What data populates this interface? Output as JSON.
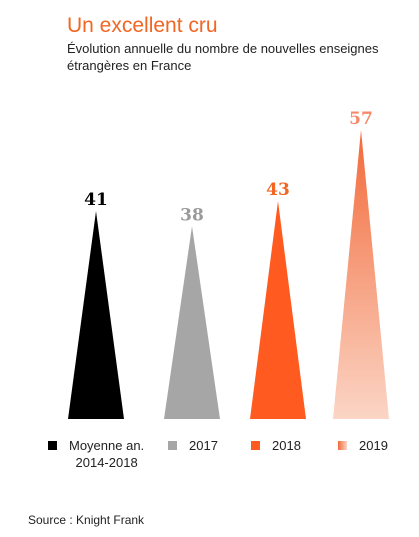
{
  "title": "Un excellent cru",
  "subtitle": "Évolution annuelle du nombre de nouvelles enseignes étrangères en France",
  "source": "Source : Knight Frank",
  "colors": {
    "title": "#f26522",
    "text": "#222222"
  },
  "chart_data": {
    "type": "bar",
    "shape": "triangle",
    "title": "Un excellent cru",
    "subtitle": "Évolution annuelle du nombre de nouvelles enseignes étrangères en France",
    "categories": [
      "Moyenne an.\n2014-2018",
      "2017",
      "2018",
      "2019"
    ],
    "values": [
      41,
      38,
      43,
      57
    ],
    "value_labels": [
      "41",
      "38",
      "43",
      "57"
    ],
    "colors": [
      "#000000",
      "#a6a6a6",
      "#ff5a1f",
      "#f58a6a"
    ],
    "label_colors": [
      "#000000",
      "#9a9a9a",
      "#f26522",
      "#f58a6a"
    ],
    "gradient_last": true,
    "ylim": [
      0,
      60
    ],
    "grid": false,
    "legend": "bottom",
    "source": "Source : Knight Frank"
  }
}
